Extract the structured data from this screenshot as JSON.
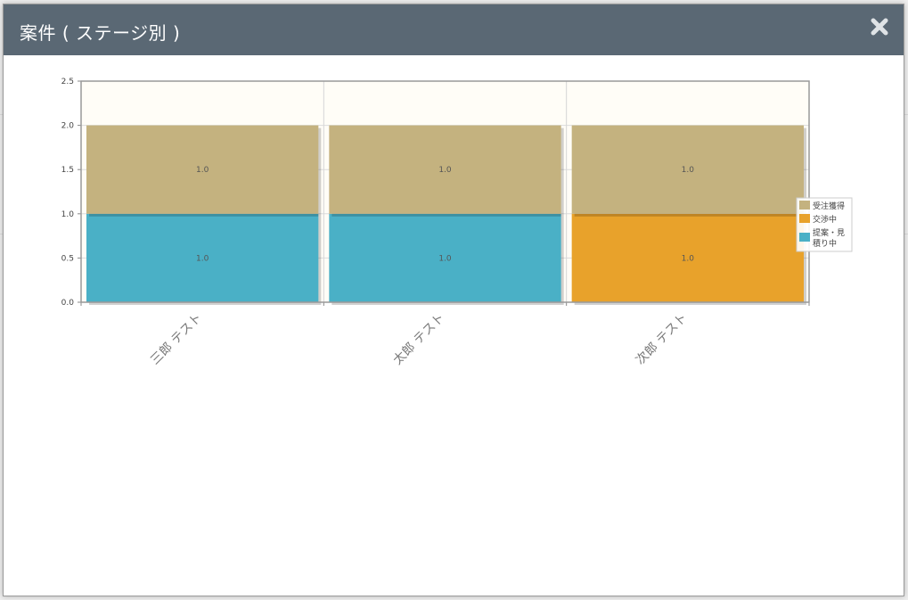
{
  "modal": {
    "title": "案件 ( ステージ別 )"
  },
  "icons": {
    "close": "close-x-icon"
  },
  "colors": {
    "header_bg": "#5a6874",
    "plot_bg": "#fffdf7",
    "stage_won": "#c4b27f",
    "stage_negotiation": "#e8a22b",
    "stage_proposal": "#4ab0c6"
  },
  "chart_data": {
    "type": "bar",
    "stacked": true,
    "categories": [
      "三郎 テスト",
      "太郎 テスト",
      "次郎 テスト"
    ],
    "series": [
      {
        "name": "受注獲得",
        "values": [
          1.0,
          1.0,
          1.0
        ],
        "color": "#c4b27f"
      },
      {
        "name": "交渉中",
        "values": [
          0,
          0,
          1.0
        ],
        "color": "#e8a22b"
      },
      {
        "name": "提案・見積り中",
        "values": [
          1.0,
          1.0,
          0
        ],
        "color": "#4ab0c6"
      }
    ],
    "y_ticks": [
      "0.0",
      "0.5",
      "1.0",
      "1.5",
      "2.0",
      "2.5"
    ],
    "ylim": [
      0,
      2.5
    ],
    "legend": {
      "position": "right",
      "entries": [
        "受注獲得",
        "交渉中",
        "提案・見",
        "積り中"
      ]
    },
    "grid": true
  }
}
